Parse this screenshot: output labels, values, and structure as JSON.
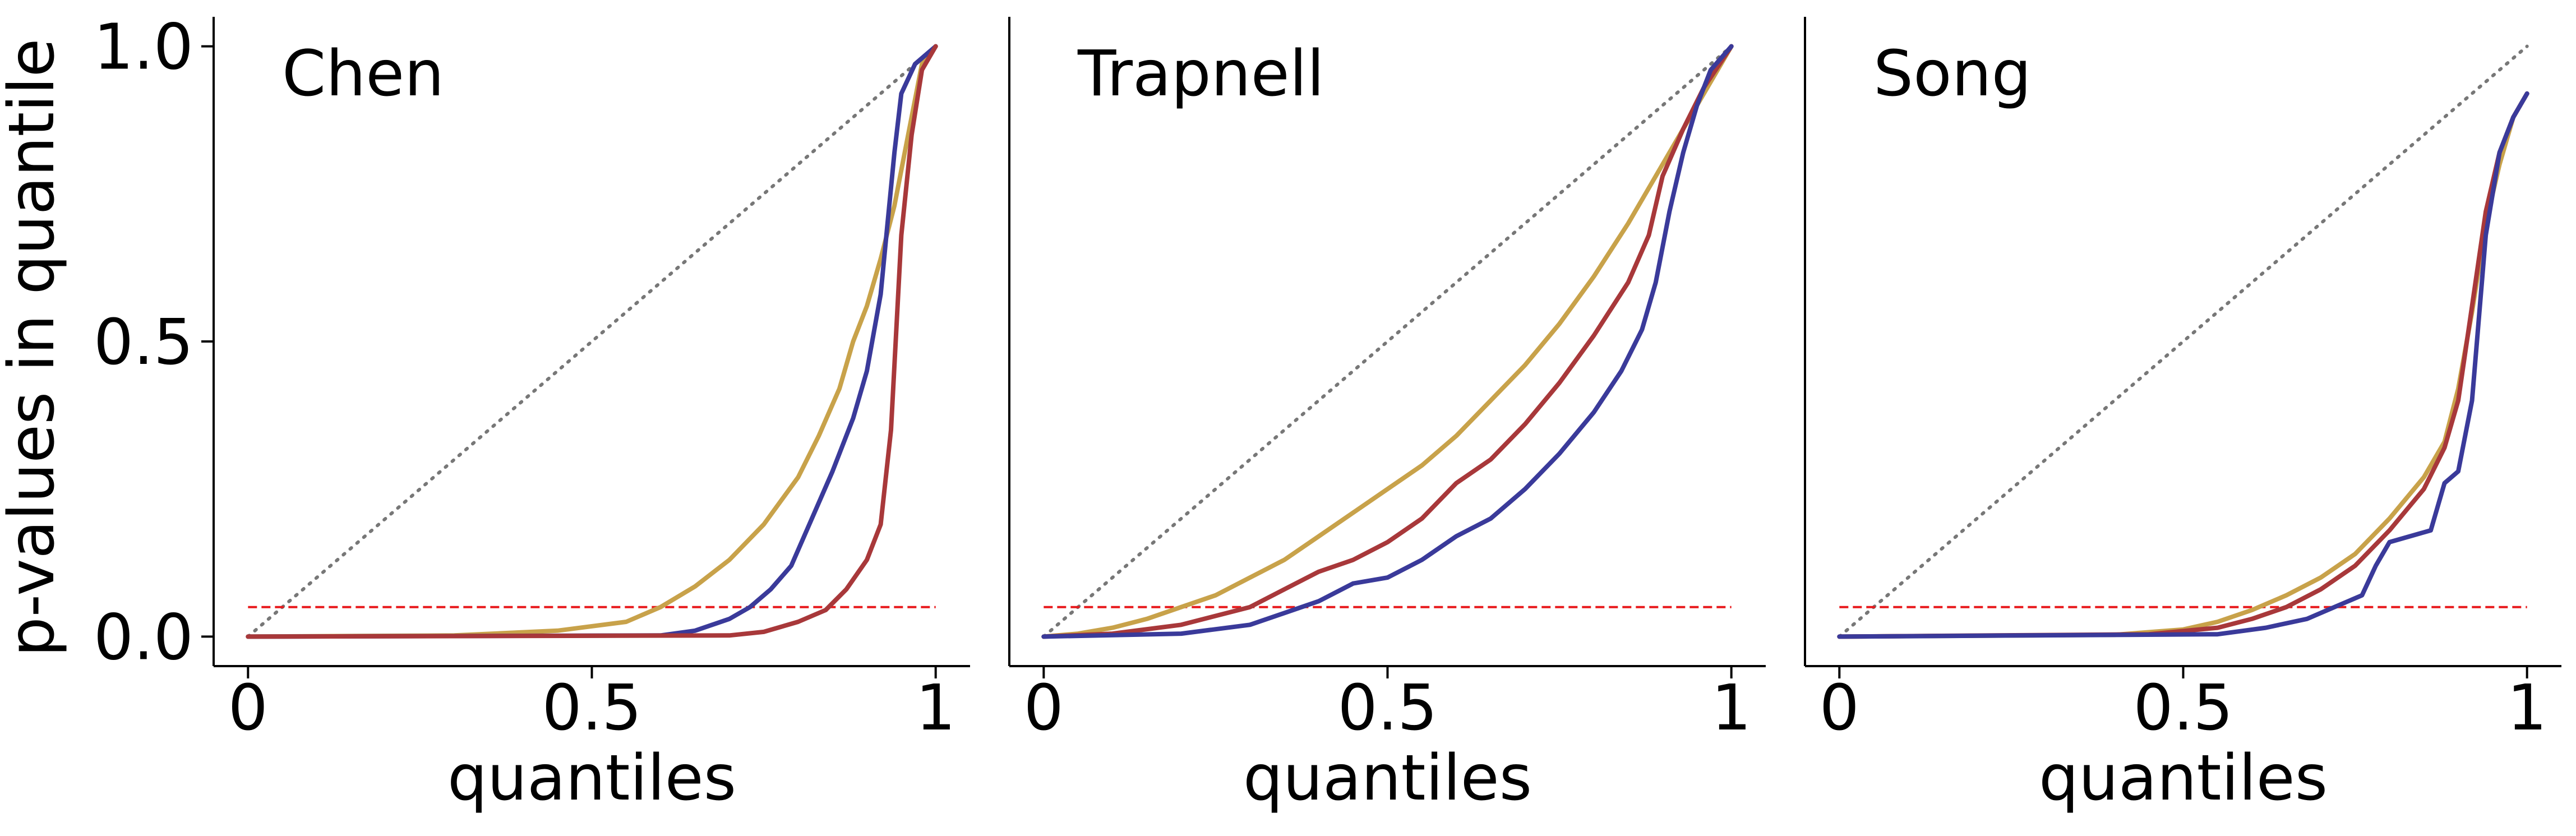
{
  "figure": {
    "ylabel": "p-values in quantile"
  },
  "style": {
    "colors": {
      "gold": "#c8a24a",
      "red": "#a8383a",
      "blue": "#3a3a9a",
      "diagonal": "#777777",
      "threshold": "#e8191c"
    }
  },
  "chart_data": [
    {
      "type": "line",
      "title": "Chen",
      "xlabel": "quantiles",
      "ylabel": "p-values in quantile",
      "xlim": [
        -0.05,
        1.05
      ],
      "ylim": [
        -0.05,
        1.05
      ],
      "xticks": [
        {
          "value": 0,
          "label": "0"
        },
        {
          "value": 0.5,
          "label": "0.5"
        },
        {
          "value": 1,
          "label": "1"
        }
      ],
      "yticks": [
        {
          "value": 0,
          "label": "0.0"
        },
        {
          "value": 0.5,
          "label": "0.5"
        },
        {
          "value": 1,
          "label": "1.0"
        }
      ],
      "reference_line": {
        "x": [
          0,
          1
        ],
        "y": [
          0,
          1
        ],
        "style": "dotted",
        "color": "#777777"
      },
      "threshold_line": {
        "y": 0.05,
        "x": [
          0,
          1
        ],
        "style": "dashed",
        "color": "#e8191c"
      },
      "series": [
        {
          "color": "#c8a24a",
          "x": [
            0,
            0.3,
            0.45,
            0.55,
            0.6,
            0.65,
            0.7,
            0.75,
            0.8,
            0.83,
            0.86,
            0.88,
            0.9,
            0.92,
            0.94,
            0.96,
            0.98,
            1.0
          ],
          "y": [
            0,
            0.002,
            0.01,
            0.025,
            0.05,
            0.085,
            0.13,
            0.19,
            0.27,
            0.34,
            0.42,
            0.5,
            0.56,
            0.64,
            0.73,
            0.85,
            0.97,
            1.0
          ]
        },
        {
          "color": "#3a3a9a",
          "x": [
            0,
            0.6,
            0.65,
            0.7,
            0.73,
            0.76,
            0.79,
            0.82,
            0.85,
            0.88,
            0.9,
            0.92,
            0.93,
            0.94,
            0.95,
            0.97,
            1.0
          ],
          "y": [
            0,
            0.002,
            0.01,
            0.03,
            0.05,
            0.08,
            0.12,
            0.2,
            0.28,
            0.37,
            0.45,
            0.58,
            0.7,
            0.82,
            0.92,
            0.97,
            1.0
          ]
        },
        {
          "color": "#a8383a",
          "x": [
            0,
            0.7,
            0.75,
            0.8,
            0.84,
            0.87,
            0.9,
            0.92,
            0.935,
            0.95,
            0.965,
            0.98,
            1.0
          ],
          "y": [
            0,
            0.002,
            0.008,
            0.025,
            0.045,
            0.08,
            0.13,
            0.19,
            0.35,
            0.68,
            0.85,
            0.96,
            1.0
          ]
        }
      ]
    },
    {
      "type": "line",
      "title": "Trapnell",
      "xlabel": "quantiles",
      "xlim": [
        -0.05,
        1.05
      ],
      "ylim": [
        -0.05,
        1.05
      ],
      "xticks": [
        {
          "value": 0,
          "label": "0"
        },
        {
          "value": 0.5,
          "label": "0.5"
        },
        {
          "value": 1,
          "label": "1"
        }
      ],
      "reference_line": {
        "x": [
          0,
          1
        ],
        "y": [
          0,
          1
        ],
        "style": "dotted",
        "color": "#777777"
      },
      "threshold_line": {
        "y": 0.05,
        "x": [
          0,
          1
        ],
        "style": "dashed",
        "color": "#e8191c"
      },
      "series": [
        {
          "color": "#c8a24a",
          "x": [
            0,
            0.05,
            0.1,
            0.15,
            0.2,
            0.25,
            0.3,
            0.35,
            0.4,
            0.45,
            0.5,
            0.55,
            0.6,
            0.65,
            0.7,
            0.75,
            0.8,
            0.85,
            0.9,
            0.95,
            1.0
          ],
          "y": [
            0,
            0.005,
            0.015,
            0.03,
            0.05,
            0.07,
            0.1,
            0.13,
            0.17,
            0.21,
            0.25,
            0.29,
            0.34,
            0.4,
            0.46,
            0.53,
            0.61,
            0.7,
            0.8,
            0.9,
            1.0
          ]
        },
        {
          "color": "#a8383a",
          "x": [
            0,
            0.1,
            0.2,
            0.3,
            0.35,
            0.4,
            0.45,
            0.5,
            0.55,
            0.6,
            0.65,
            0.7,
            0.75,
            0.8,
            0.85,
            0.88,
            0.9,
            0.93,
            0.96,
            1.0
          ],
          "y": [
            0,
            0.005,
            0.02,
            0.05,
            0.08,
            0.11,
            0.13,
            0.16,
            0.2,
            0.26,
            0.3,
            0.36,
            0.43,
            0.51,
            0.6,
            0.68,
            0.78,
            0.86,
            0.93,
            1.0
          ]
        },
        {
          "color": "#3a3a9a",
          "x": [
            0,
            0.2,
            0.3,
            0.35,
            0.4,
            0.45,
            0.5,
            0.55,
            0.6,
            0.65,
            0.7,
            0.75,
            0.8,
            0.84,
            0.87,
            0.89,
            0.91,
            0.93,
            0.95,
            0.97,
            1.0
          ],
          "y": [
            0,
            0.005,
            0.02,
            0.04,
            0.06,
            0.09,
            0.1,
            0.13,
            0.17,
            0.2,
            0.25,
            0.31,
            0.38,
            0.45,
            0.52,
            0.6,
            0.72,
            0.82,
            0.9,
            0.96,
            1.0
          ]
        }
      ]
    },
    {
      "type": "line",
      "title": "Song",
      "xlabel": "quantiles",
      "xlim": [
        -0.05,
        1.05
      ],
      "ylim": [
        -0.05,
        1.05
      ],
      "xticks": [
        {
          "value": 0,
          "label": "0"
        },
        {
          "value": 0.5,
          "label": "0.5"
        },
        {
          "value": 1,
          "label": "1"
        }
      ],
      "reference_line": {
        "x": [
          0,
          1
        ],
        "y": [
          0,
          1
        ],
        "style": "dotted",
        "color": "#777777"
      },
      "threshold_line": {
        "y": 0.05,
        "x": [
          0,
          1
        ],
        "style": "dashed",
        "color": "#e8191c"
      },
      "series": [
        {
          "color": "#c8a24a",
          "x": [
            0,
            0.4,
            0.5,
            0.55,
            0.6,
            0.65,
            0.7,
            0.75,
            0.8,
            0.85,
            0.88,
            0.9,
            0.92,
            0.94,
            0.96,
            0.98,
            1.0
          ],
          "y": [
            0,
            0.003,
            0.012,
            0.025,
            0.045,
            0.07,
            0.1,
            0.14,
            0.2,
            0.27,
            0.33,
            0.42,
            0.55,
            0.7,
            0.8,
            0.88,
            0.92
          ]
        },
        {
          "color": "#a8383a",
          "x": [
            0,
            0.45,
            0.55,
            0.6,
            0.65,
            0.7,
            0.75,
            0.8,
            0.85,
            0.88,
            0.9,
            0.92,
            0.94,
            0.96,
            0.98,
            1.0
          ],
          "y": [
            0,
            0.004,
            0.015,
            0.03,
            0.05,
            0.08,
            0.12,
            0.18,
            0.25,
            0.32,
            0.4,
            0.56,
            0.72,
            0.82,
            0.88,
            0.92
          ]
        },
        {
          "color": "#3a3a9a",
          "x": [
            0,
            0.55,
            0.62,
            0.68,
            0.72,
            0.76,
            0.78,
            0.8,
            0.83,
            0.86,
            0.88,
            0.9,
            0.92,
            0.94,
            0.96,
            0.98,
            1.0
          ],
          "y": [
            0,
            0.004,
            0.015,
            0.03,
            0.05,
            0.07,
            0.12,
            0.16,
            0.17,
            0.18,
            0.26,
            0.28,
            0.4,
            0.68,
            0.82,
            0.88,
            0.92
          ]
        }
      ]
    }
  ]
}
